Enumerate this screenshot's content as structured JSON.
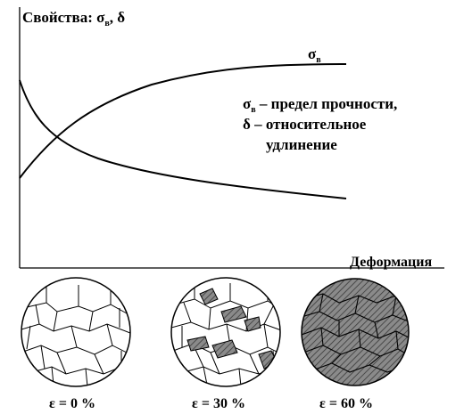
{
  "chart": {
    "y_axis_label": "Свойства: σ",
    "y_axis_label_sub": "в",
    "y_axis_label_tail": ", δ",
    "x_axis_label": "Деформация",
    "curve_label_sigma": "σ",
    "curve_label_sigma_sub": "в",
    "legend": {
      "line1_symbol": "σ",
      "line1_sub": "в",
      "line1_text": " – предел прочности,",
      "line2": "δ – относительное",
      "line3": "удлинение"
    }
  },
  "chart_data": {
    "type": "line",
    "title": "",
    "xlabel": "Деформация",
    "ylabel": "Свойства: σв, δ",
    "series": [
      {
        "name": "σв",
        "trend": "increasing, saturating",
        "x": [
          0,
          0.1,
          0.2,
          0.3,
          0.4,
          0.5,
          0.6,
          0.7,
          0.8,
          0.9,
          1.0
        ],
        "y": [
          0.38,
          0.52,
          0.62,
          0.7,
          0.77,
          0.83,
          0.87,
          0.9,
          0.93,
          0.94,
          0.95
        ]
      },
      {
        "name": "δ",
        "trend": "decreasing",
        "x": [
          0,
          0.05,
          0.1,
          0.2,
          0.3,
          0.4,
          0.5,
          0.6,
          0.7,
          0.8,
          0.9,
          1.0
        ],
        "y": [
          0.8,
          0.62,
          0.54,
          0.46,
          0.41,
          0.38,
          0.35,
          0.33,
          0.31,
          0.29,
          0.28,
          0.27
        ]
      }
    ],
    "grid": false
  },
  "micrographs": [
    {
      "label": "ε = 0 %",
      "fill": "none"
    },
    {
      "label": "ε = 30 %",
      "fill": "partial"
    },
    {
      "label": "ε = 60 %",
      "fill": "full"
    }
  ],
  "colors": {
    "ink": "#000000",
    "paper": "#ffffff",
    "hatch_fill": "#8a8a8a"
  }
}
